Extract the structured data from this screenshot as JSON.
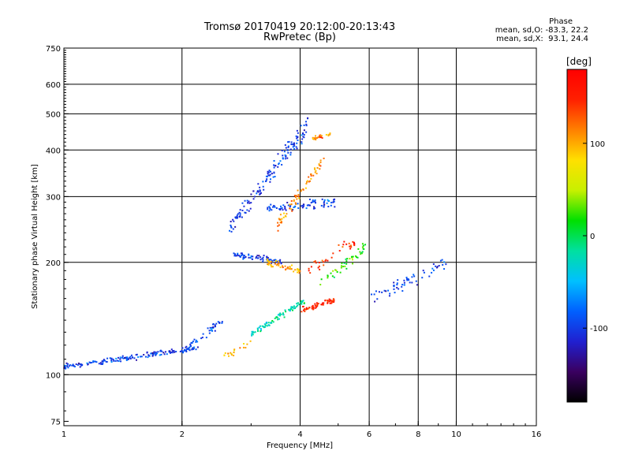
{
  "chart_data": {
    "type": "scatter",
    "title": "Tromsø 20170419 20:12:00-20:13:43",
    "subtitle": "RwPretec (Bp)",
    "xlabel": "Frequency [MHz]",
    "ylabel": "Stationary phase Virtual Height [km]",
    "xscale": "log",
    "yscale": "log",
    "xlim": [
      1,
      16
    ],
    "ylim": [
      73,
      750
    ],
    "x_ticks": [
      1,
      2,
      4,
      6,
      8,
      10,
      16
    ],
    "y_ticks": [
      75,
      100,
      200,
      300,
      400,
      500,
      600,
      750
    ],
    "x_grid": [
      2,
      4,
      6,
      8,
      10
    ],
    "y_grid": [
      100,
      200,
      300,
      400,
      500,
      600
    ],
    "grid": true,
    "stats": {
      "header": "Phase",
      "line_o": "mean, sd,O: -83.3, 22.2",
      "line_x": "mean, sd,X:  93.1, 24.4"
    },
    "colorbar": {
      "label": "[deg]",
      "range": [
        -180,
        180
      ],
      "ticks": [
        100,
        0,
        -100
      ],
      "colors": [
        "#000000",
        "#3a0060",
        "#2020d0",
        "#0060ff",
        "#00c0ff",
        "#00e0a0",
        "#00e000",
        "#c8f000",
        "#ffe000",
        "#ff8000",
        "#ff2000",
        "#ff0000"
      ]
    },
    "traces": [
      {
        "name": "",
        "x_range": [
          1.0,
          2.2
        ],
        "h_start": 105,
        "h_end": 118,
        "phase": -100,
        "spread": 0.025,
        "n": 170
      },
      {
        "name": "",
        "x_range": [
          2.05,
          2.55
        ],
        "h_start": 118,
        "h_end": 140,
        "phase": -95,
        "spread": 0.035,
        "n": 45
      },
      {
        "name": "",
        "x_range": [
          2.5,
          3.0
        ],
        "h_start": 110,
        "h_end": 122,
        "phase": 100,
        "spread": 0.03,
        "n": 20
      },
      {
        "name": "",
        "x_range": [
          3.0,
          4.1
        ],
        "h_start": 128,
        "h_end": 158,
        "phase": -20,
        "spread": 0.03,
        "n": 90
      },
      {
        "name": "",
        "x_range": [
          4.0,
          4.9
        ],
        "h_start": 148,
        "h_end": 158,
        "phase": 150,
        "spread": 0.03,
        "n": 60
      },
      {
        "name": "",
        "x_range": [
          2.6,
          4.2
        ],
        "h_start": 240,
        "h_end": 470,
        "phase": -100,
        "spread": 0.08,
        "n": 150
      },
      {
        "name": "",
        "x_range": [
          3.3,
          4.9
        ],
        "h_start": 280,
        "h_end": 290,
        "phase": -95,
        "spread": 0.04,
        "n": 80
      },
      {
        "name": "",
        "x_range": [
          3.5,
          4.6
        ],
        "h_start": 250,
        "h_end": 380,
        "phase": 110,
        "spread": 0.06,
        "n": 70
      },
      {
        "name": "",
        "x_range": [
          2.7,
          3.6
        ],
        "h_start": 210,
        "h_end": 200,
        "phase": -100,
        "spread": 0.03,
        "n": 70
      },
      {
        "name": "",
        "x_range": [
          3.3,
          4.0
        ],
        "h_start": 200,
        "h_end": 190,
        "phase": 105,
        "spread": 0.03,
        "n": 45
      },
      {
        "name": "",
        "x_range": [
          4.5,
          5.9
        ],
        "h_start": 175,
        "h_end": 220,
        "phase": 20,
        "spread": 0.05,
        "n": 45
      },
      {
        "name": "",
        "x_range": [
          4.2,
          5.6
        ],
        "h_start": 190,
        "h_end": 230,
        "phase": 150,
        "spread": 0.05,
        "n": 35
      },
      {
        "name": "",
        "x_range": [
          6.0,
          9.5
        ],
        "h_start": 160,
        "h_end": 200,
        "phase": -95,
        "spread": 0.06,
        "n": 60
      },
      {
        "name": "",
        "x_range": [
          4.3,
          4.8
        ],
        "h_start": 430,
        "h_end": 440,
        "phase": 110,
        "spread": 0.02,
        "n": 25
      }
    ]
  }
}
